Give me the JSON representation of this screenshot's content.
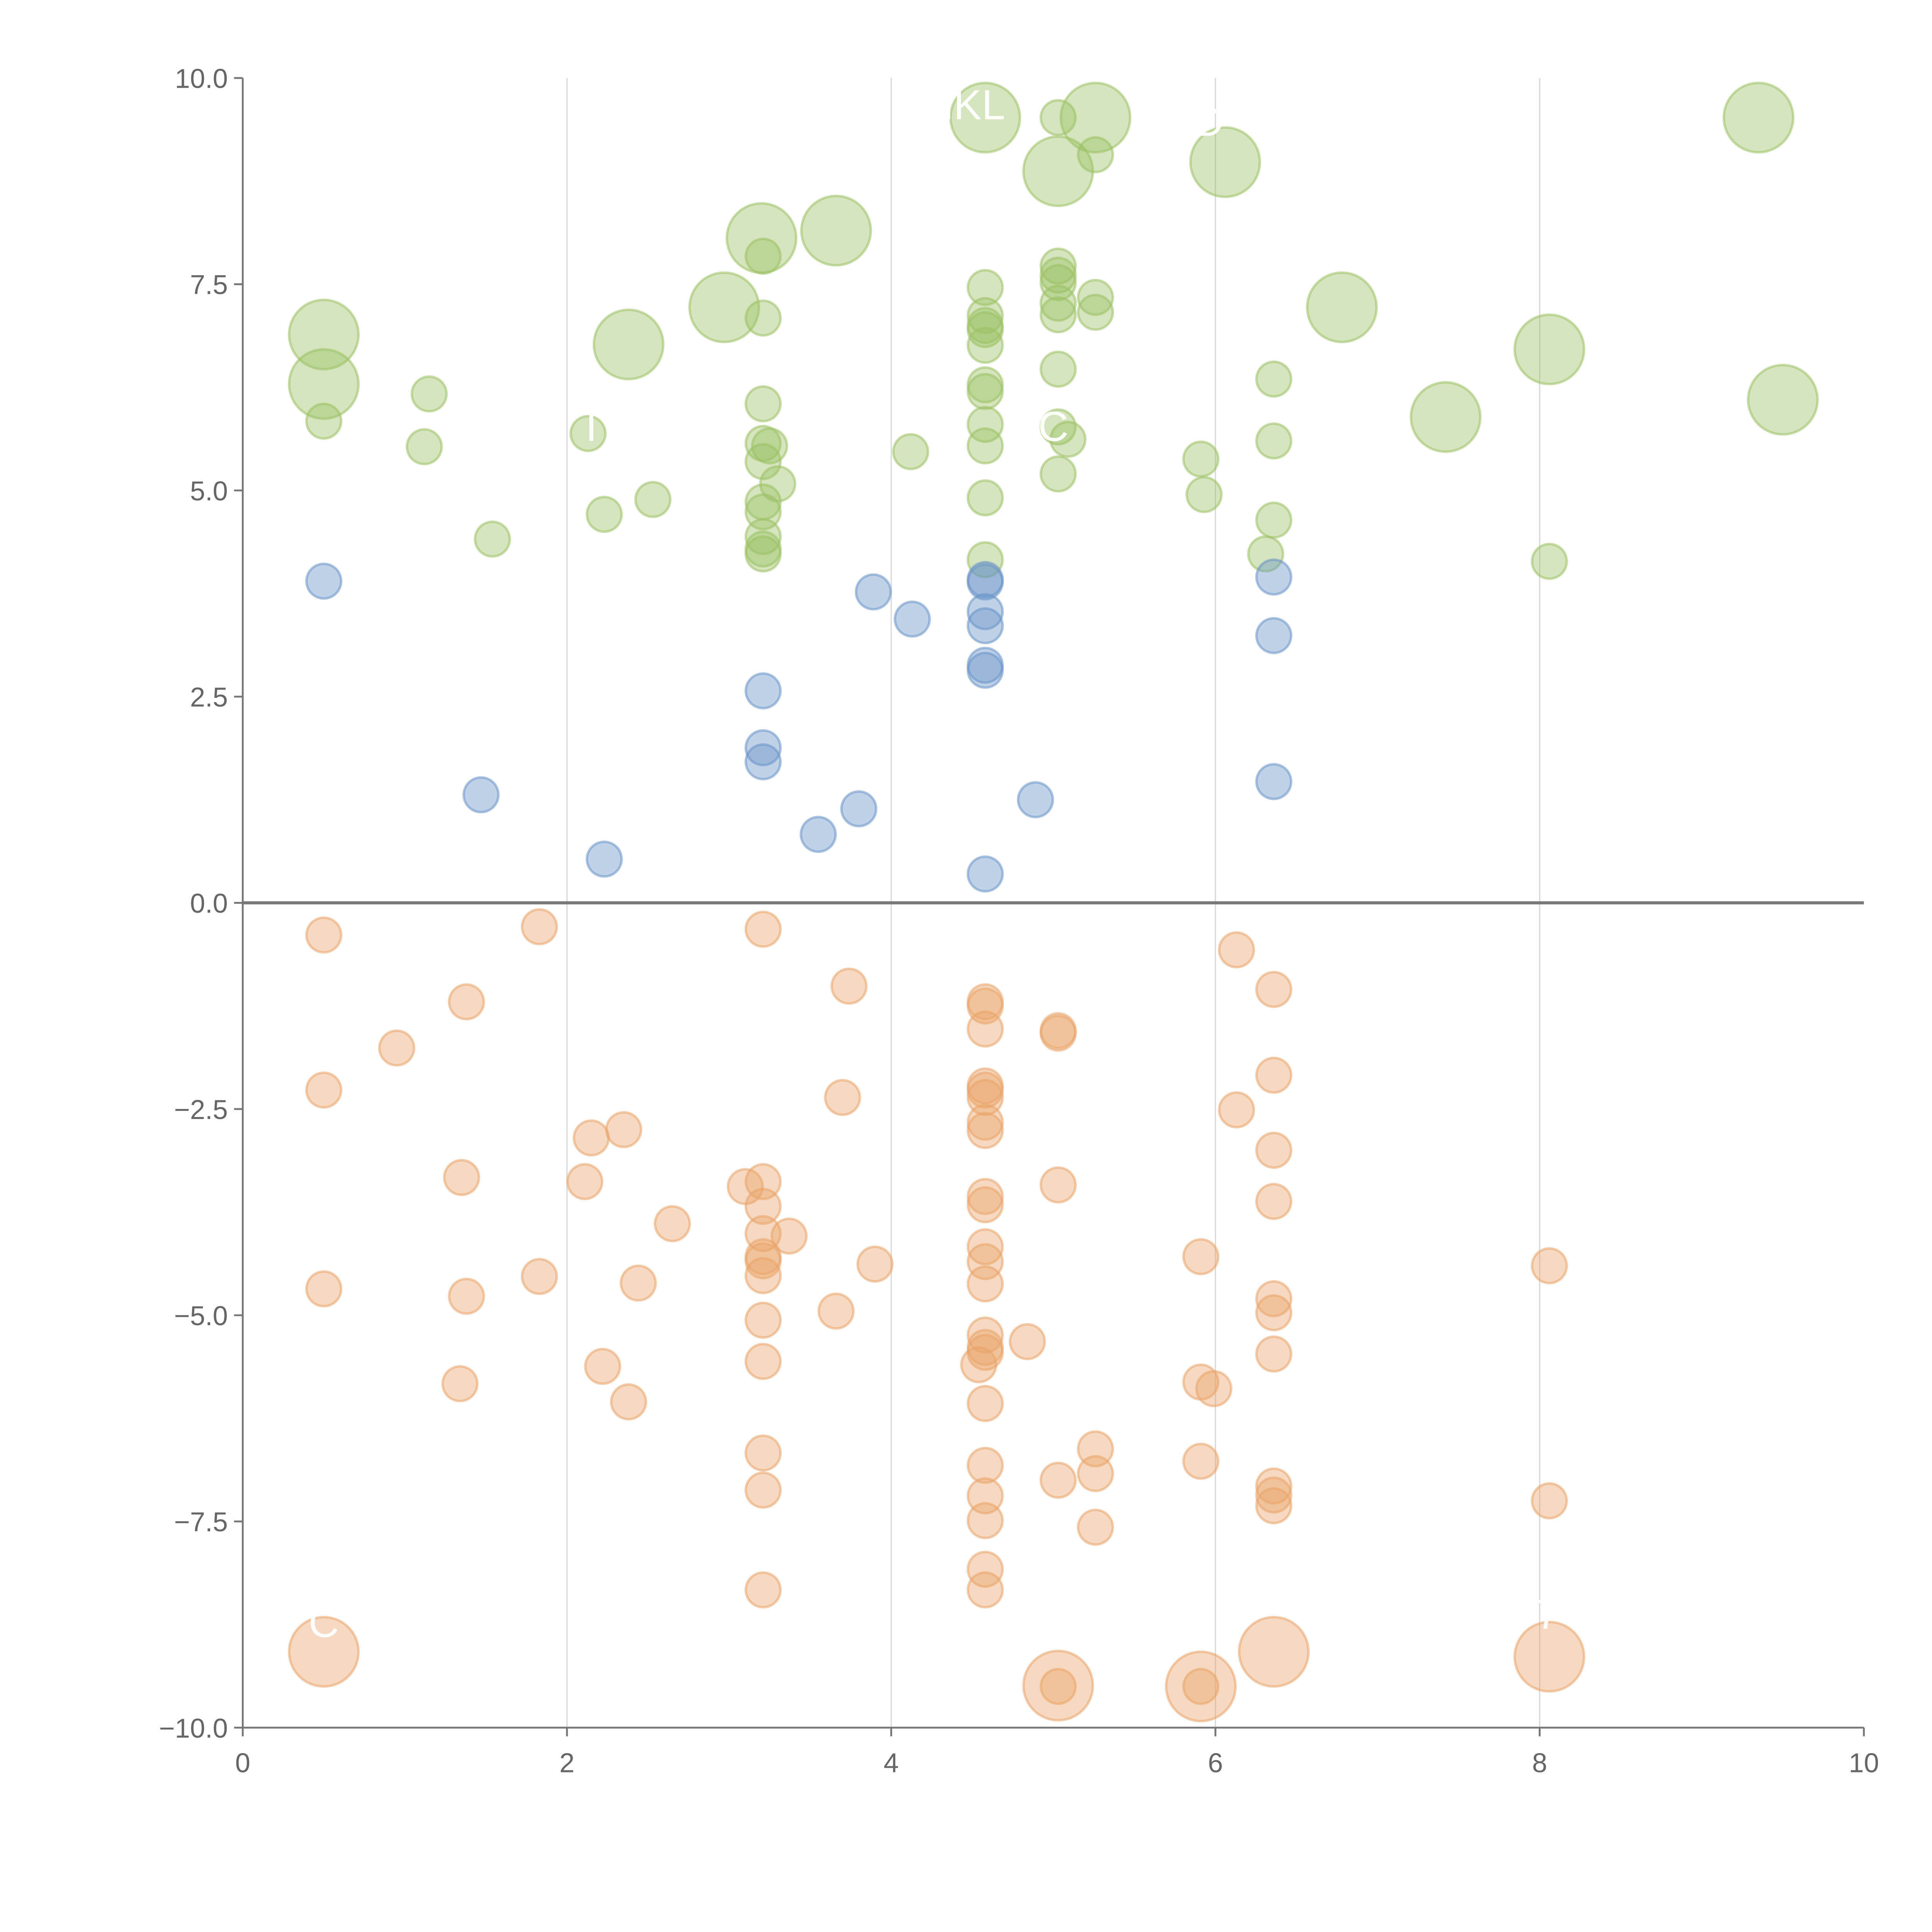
{
  "chart_data": {
    "type": "scatter",
    "title": "",
    "xlabel": "",
    "ylabel": "",
    "xlim": [
      0,
      10
    ],
    "ylim": [
      -10,
      10
    ],
    "xticks": [
      "0",
      "2",
      "4",
      "6",
      "8",
      "10"
    ],
    "yticks": [
      "10.0",
      "7.5",
      "5.0",
      "2.5",
      "0.0",
      "−2.5",
      "−5.0",
      "−7.5",
      "−10.0"
    ],
    "grid": "vertical",
    "size_note": "point format [x, y, size]; size 1 = small bubble, 2 = large bubble",
    "series": [
      {
        "name": "green",
        "color": "#9cc164",
        "points": [
          [
            0.5,
            5.84,
            1
          ],
          [
            1.15,
            6.17,
            1
          ],
          [
            1.12,
            5.53,
            1
          ],
          [
            1.54,
            4.41,
            1
          ],
          [
            2.13,
            5.69,
            1
          ],
          [
            2.23,
            4.71,
            1
          ],
          [
            2.53,
            4.89,
            1
          ],
          [
            3.21,
            7.84,
            1
          ],
          [
            3.21,
            7.09,
            1
          ],
          [
            3.21,
            6.05,
            1
          ],
          [
            3.21,
            5.57,
            1
          ],
          [
            3.25,
            5.54,
            1
          ],
          [
            3.21,
            5.35,
            1
          ],
          [
            3.3,
            5.08,
            1
          ],
          [
            3.21,
            4.86,
            1
          ],
          [
            3.21,
            4.74,
            1
          ],
          [
            3.21,
            4.44,
            1
          ],
          [
            3.21,
            4.23,
            1
          ],
          [
            3.21,
            4.29,
            1
          ],
          [
            4.12,
            5.47,
            1
          ],
          [
            4.58,
            7.46,
            1
          ],
          [
            4.58,
            7.12,
            1
          ],
          [
            4.58,
            7.0,
            1
          ],
          [
            4.58,
            6.95,
            1
          ],
          [
            4.58,
            6.76,
            1
          ],
          [
            4.58,
            6.28,
            1
          ],
          [
            4.58,
            6.2,
            1
          ],
          [
            4.58,
            5.8,
            1
          ],
          [
            4.58,
            5.54,
            1
          ],
          [
            4.58,
            4.91,
            1
          ],
          [
            4.58,
            4.16,
            1
          ],
          [
            5.03,
            9.52,
            1
          ],
          [
            5.03,
            7.72,
            1
          ],
          [
            5.03,
            7.61,
            1
          ],
          [
            5.03,
            7.52,
            1
          ],
          [
            5.03,
            7.27,
            1
          ],
          [
            5.03,
            7.13,
            1
          ],
          [
            5.03,
            6.47,
            1
          ],
          [
            5.03,
            5.77,
            1
          ],
          [
            5.09,
            5.62,
            1
          ],
          [
            5.03,
            5.2,
            1
          ],
          [
            5.26,
            9.07,
            1
          ],
          [
            5.26,
            7.34,
            1
          ],
          [
            5.26,
            7.16,
            1
          ],
          [
            5.91,
            5.38,
            1
          ],
          [
            5.93,
            4.95,
            1
          ],
          [
            6.36,
            6.35,
            1
          ],
          [
            6.36,
            5.6,
            1
          ],
          [
            6.36,
            4.64,
            1
          ],
          [
            6.31,
            4.23,
            1
          ],
          [
            8.06,
            4.14,
            1
          ],
          [
            0.5,
            6.89,
            2
          ],
          [
            0.5,
            6.29,
            2
          ],
          [
            2.38,
            6.77,
            2
          ],
          [
            2.97,
            7.22,
            2
          ],
          [
            3.2,
            8.06,
            2
          ],
          [
            3.66,
            8.15,
            2
          ],
          [
            4.58,
            9.52,
            2
          ],
          [
            5.03,
            8.87,
            2
          ],
          [
            5.26,
            9.52,
            2
          ],
          [
            6.06,
            8.98,
            2
          ],
          [
            6.78,
            7.22,
            2
          ],
          [
            7.42,
            5.89,
            2
          ],
          [
            8.06,
            6.71,
            2
          ],
          [
            9.35,
            9.52,
            2
          ],
          [
            9.5,
            6.1,
            2
          ]
        ]
      },
      {
        "name": "blue",
        "color": "#6a93c9",
        "points": [
          [
            0.5,
            3.9,
            1
          ],
          [
            1.47,
            1.31,
            1
          ],
          [
            2.23,
            0.53,
            1
          ],
          [
            3.21,
            2.57,
            1
          ],
          [
            3.21,
            1.88,
            1
          ],
          [
            3.21,
            1.71,
            1
          ],
          [
            3.55,
            0.83,
            1
          ],
          [
            3.8,
            1.14,
            1
          ],
          [
            3.89,
            3.77,
            1
          ],
          [
            4.13,
            3.44,
            1
          ],
          [
            4.58,
            3.92,
            1
          ],
          [
            4.58,
            3.89,
            1
          ],
          [
            4.58,
            3.53,
            1
          ],
          [
            4.58,
            3.36,
            1
          ],
          [
            4.58,
            2.88,
            1
          ],
          [
            4.58,
            2.82,
            1
          ],
          [
            4.58,
            0.35,
            1
          ],
          [
            4.89,
            1.25,
            1
          ],
          [
            6.36,
            3.95,
            1
          ],
          [
            6.36,
            3.24,
            1
          ],
          [
            6.36,
            1.47,
            1
          ]
        ]
      },
      {
        "name": "orange",
        "color": "#e9a46a",
        "points": [
          [
            0.5,
            -0.39,
            1
          ],
          [
            0.5,
            -2.27,
            1
          ],
          [
            0.5,
            -4.68,
            1
          ],
          [
            0.95,
            -1.76,
            1
          ],
          [
            1.38,
            -1.2,
            1
          ],
          [
            1.35,
            -3.33,
            1
          ],
          [
            1.38,
            -4.77,
            1
          ],
          [
            1.34,
            -5.83,
            1
          ],
          [
            1.83,
            -0.29,
            1
          ],
          [
            1.83,
            -4.53,
            1
          ],
          [
            2.11,
            -3.38,
            1
          ],
          [
            2.15,
            -2.85,
            1
          ],
          [
            2.35,
            -2.75,
            1
          ],
          [
            2.22,
            -5.62,
            1
          ],
          [
            2.38,
            -6.05,
            1
          ],
          [
            2.44,
            -4.61,
            1
          ],
          [
            2.65,
            -3.89,
            1
          ],
          [
            3.1,
            -3.44,
            1
          ],
          [
            3.21,
            -0.32,
            1
          ],
          [
            3.21,
            -3.38,
            1
          ],
          [
            3.21,
            -3.68,
            1
          ],
          [
            3.21,
            -4.01,
            1
          ],
          [
            3.21,
            -4.29,
            1
          ],
          [
            3.21,
            -4.34,
            1
          ],
          [
            3.21,
            -4.52,
            1
          ],
          [
            3.21,
            -5.06,
            1
          ],
          [
            3.21,
            -5.56,
            1
          ],
          [
            3.21,
            -6.67,
            1
          ],
          [
            3.21,
            -7.12,
            1
          ],
          [
            3.21,
            -8.33,
            1
          ],
          [
            3.37,
            -4.04,
            1
          ],
          [
            3.74,
            -1.01,
            1
          ],
          [
            3.7,
            -2.36,
            1
          ],
          [
            3.66,
            -4.95,
            1
          ],
          [
            3.9,
            -4.38,
            1
          ],
          [
            4.58,
            -1.2,
            1
          ],
          [
            4.58,
            -1.25,
            1
          ],
          [
            4.58,
            -1.53,
            1
          ],
          [
            4.58,
            -2.22,
            1
          ],
          [
            4.58,
            -2.27,
            1
          ],
          [
            4.58,
            -2.36,
            1
          ],
          [
            4.58,
            -2.66,
            1
          ],
          [
            4.58,
            -2.76,
            1
          ],
          [
            4.58,
            -3.56,
            1
          ],
          [
            4.58,
            -3.66,
            1
          ],
          [
            4.58,
            -4.17,
            1
          ],
          [
            4.58,
            -4.35,
            1
          ],
          [
            4.58,
            -4.62,
            1
          ],
          [
            4.58,
            -5.24,
            1
          ],
          [
            4.58,
            -5.39,
            1
          ],
          [
            4.58,
            -5.45,
            1
          ],
          [
            4.54,
            -5.6,
            1
          ],
          [
            4.58,
            -6.07,
            1
          ],
          [
            4.58,
            -6.82,
            1
          ],
          [
            4.58,
            -7.19,
            1
          ],
          [
            4.58,
            -7.49,
            1
          ],
          [
            4.58,
            -8.08,
            1
          ],
          [
            4.58,
            -8.33,
            1
          ],
          [
            4.84,
            -5.32,
            1
          ],
          [
            5.03,
            -1.55,
            1
          ],
          [
            5.03,
            -1.58,
            1
          ],
          [
            5.03,
            -3.42,
            1
          ],
          [
            5.03,
            -7.0,
            1
          ],
          [
            5.03,
            -9.5,
            1
          ],
          [
            5.26,
            -6.62,
            1
          ],
          [
            5.26,
            -6.92,
            1
          ],
          [
            5.26,
            -7.57,
            1
          ],
          [
            5.91,
            -4.29,
            1
          ],
          [
            5.91,
            -5.81,
            1
          ],
          [
            5.99,
            -5.89,
            1
          ],
          [
            5.91,
            -6.77,
            1
          ],
          [
            5.91,
            -9.5,
            1
          ],
          [
            6.13,
            -0.57,
            1
          ],
          [
            6.13,
            -2.51,
            1
          ],
          [
            6.36,
            -1.05,
            1
          ],
          [
            6.36,
            -2.09,
            1
          ],
          [
            6.36,
            -3.0,
            1
          ],
          [
            6.36,
            -3.62,
            1
          ],
          [
            6.36,
            -4.8,
            1
          ],
          [
            6.36,
            -4.97,
            1
          ],
          [
            6.36,
            -5.47,
            1
          ],
          [
            6.36,
            -7.07,
            1
          ],
          [
            6.36,
            -7.18,
            1
          ],
          [
            6.36,
            -7.31,
            1
          ],
          [
            8.06,
            -4.4,
            1
          ],
          [
            8.06,
            -7.25,
            1
          ],
          [
            0.5,
            -9.08,
            2
          ],
          [
            5.03,
            -9.49,
            2
          ],
          [
            5.91,
            -9.5,
            2
          ],
          [
            6.36,
            -9.08,
            2
          ],
          [
            8.06,
            -9.14,
            2
          ]
        ]
      }
    ],
    "annotations": [
      {
        "text": "NKL",
        "x": 4.45,
        "y": 9.5
      },
      {
        "text": "MD",
        "x": 5.85,
        "y": 9.3
      },
      {
        "text": "C",
        "x": 5.0,
        "y": 5.6
      },
      {
        "text": "I",
        "x": 2.15,
        "y": 5.6
      },
      {
        "text": "C",
        "x": 0.5,
        "y": -8.9
      },
      {
        "text": "7",
        "x": 8.05,
        "y": -8.8
      }
    ]
  }
}
